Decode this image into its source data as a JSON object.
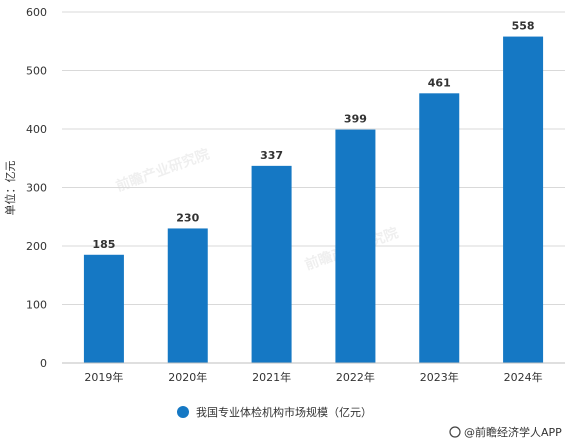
{
  "chart_data": {
    "type": "bar",
    "categories": [
      "2019年",
      "2020年",
      "2021年",
      "2022年",
      "2023年",
      "2024年"
    ],
    "series": [
      {
        "name": "我国专业体检机构市场规模（亿元）",
        "values": [
          185,
          230,
          337,
          399,
          461,
          558
        ]
      }
    ],
    "data_labels": [
      "185",
      "230",
      "337",
      "399",
      "461",
      "558"
    ],
    "title": "",
    "xlabel": "",
    "ylabel": "单位：亿元",
    "ylim": [
      0,
      600
    ],
    "yticks": [
      0,
      100,
      200,
      300,
      400,
      500,
      600
    ],
    "grid": true,
    "legend_position": "bottom",
    "bar_color": "#1578c4"
  },
  "source_label": "@前瞻经济学人APP",
  "colors": {
    "axis": "#bfbfbf",
    "grid": "#d9d9d9",
    "text": "#333333"
  }
}
